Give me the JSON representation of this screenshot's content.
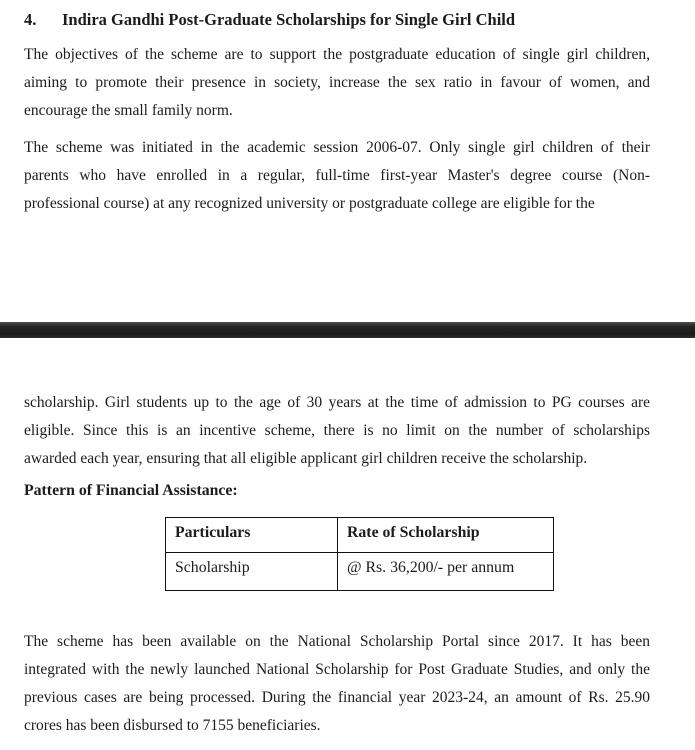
{
  "page": {
    "background": "#ffffff",
    "text_color": "#1c1c1c",
    "page_break_bar_color": "#1f1f1f"
  },
  "document": {
    "section_number": "4.",
    "section_title": "Indira Gandhi Post-Graduate Scholarships for Single Girl Child",
    "paragraphs": {
      "objectives_lines": [
        "The objectives of the scheme are to support the postgraduate education of single girl children,",
        "aiming to promote their presence in society, increase the sex ratio in favour of women, and",
        "encourage the small family norm."
      ],
      "initiation_lines": [
        "The scheme was initiated in the academic session 2006-07. Only single girl children of their",
        "parents who have enrolled in a regular, full-time first-year Master's degree course (Non-",
        "professional course) at any recognized university or postgraduate college are eligible for the"
      ],
      "eligibility_lines": [
        "scholarship. Girl students up to the age of 30 years at the time of admission to PG courses are",
        "eligible. Since this is an incentive scheme, there is no limit on the number of scholarships",
        "awarded each year, ensuring that all eligible applicant girl children receive the scholarship."
      ],
      "portal_lines": [
        "The scheme has been available on the National Scholarship Portal since 2017. It has been",
        "integrated with the newly launched National Scholarship for Post Graduate Studies, and only the",
        "previous cases are being processed. During the financial year 2023-24, an amount of Rs. 25.90",
        "crores has been disbursed to 7155 beneficiaries."
      ]
    },
    "financial_assistance_heading": "Pattern of Financial Assistance:",
    "table": {
      "headers": [
        "Particulars",
        "Rate of Scholarship"
      ],
      "rows": [
        [
          "Scholarship",
          "@ Rs. 36,200/- per annum"
        ]
      ]
    }
  }
}
